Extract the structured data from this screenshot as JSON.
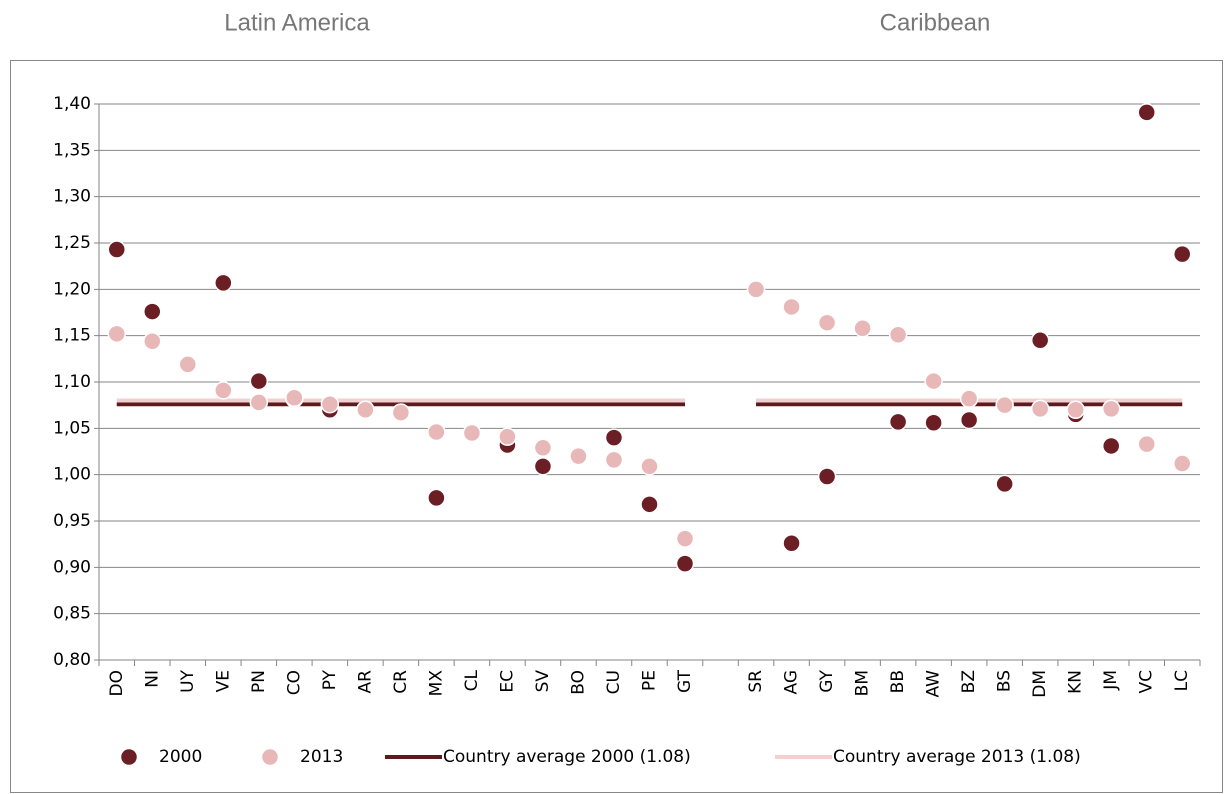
{
  "chart_data": {
    "type": "line",
    "group_titles": [
      "Latin America",
      "Caribbean"
    ],
    "categories": [
      "DO",
      "NI",
      "UY",
      "VE",
      "PN",
      "CO",
      "PY",
      "AR",
      "CR",
      "MX",
      "CL",
      "EC",
      "SV",
      "BO",
      "CU",
      "PE",
      "GT",
      null,
      "SR",
      "AG",
      "GY",
      "BM",
      "BB",
      "AW",
      "BZ",
      "BS",
      "DM",
      "KN",
      "JM",
      "VC",
      "LC"
    ],
    "series": [
      {
        "name": "2000",
        "mark": "dot",
        "color": "#6b1f24",
        "values": [
          1.243,
          1.176,
          1.119,
          1.207,
          1.101,
          1.082,
          1.07,
          1.07,
          1.067,
          0.975,
          1.045,
          1.032,
          1.009,
          1.02,
          1.04,
          0.968,
          0.904,
          null,
          1.2,
          0.926,
          0.998,
          1.158,
          1.057,
          1.056,
          1.059,
          0.99,
          1.145,
          1.065,
          1.031,
          1.391,
          1.238
        ]
      },
      {
        "name": "2013",
        "mark": "dot",
        "color": "#e8b8b8",
        "values": [
          1.152,
          1.144,
          1.119,
          1.091,
          1.078,
          1.083,
          1.076,
          1.07,
          1.067,
          1.046,
          1.045,
          1.041,
          1.029,
          1.02,
          1.016,
          1.009,
          0.931,
          null,
          1.2,
          1.181,
          1.164,
          1.158,
          1.151,
          1.101,
          1.082,
          1.075,
          1.071,
          1.07,
          1.071,
          1.033,
          1.012
        ]
      },
      {
        "name": "Country average 2000 (1.08)",
        "mark": "line",
        "color": "#5a1a1e",
        "values": [
          1.076,
          1.076,
          1.076,
          1.076,
          1.076,
          1.076,
          1.076,
          1.076,
          1.076,
          1.076,
          1.076,
          1.076,
          1.076,
          1.076,
          1.076,
          1.076,
          1.076,
          null,
          1.076,
          1.076,
          1.076,
          1.076,
          1.076,
          1.076,
          1.076,
          1.076,
          1.076,
          1.076,
          1.076,
          1.076,
          1.076
        ]
      },
      {
        "name": "Country average 2013 (1.08)",
        "mark": "line",
        "color": "#f2d0d0",
        "values": [
          1.08,
          1.08,
          1.08,
          1.08,
          1.08,
          1.08,
          1.08,
          1.08,
          1.08,
          1.08,
          1.08,
          1.08,
          1.08,
          1.08,
          1.08,
          1.08,
          1.08,
          null,
          1.08,
          1.08,
          1.08,
          1.08,
          1.08,
          1.08,
          1.08,
          1.08,
          1.08,
          1.08,
          1.08,
          1.08,
          1.08
        ]
      }
    ],
    "ylim": [
      0.8,
      1.4
    ],
    "yticks": [
      {
        "value": 0.8,
        "label": "0,80"
      },
      {
        "value": 0.85,
        "label": "0,85"
      },
      {
        "value": 0.9,
        "label": "0,90"
      },
      {
        "value": 0.95,
        "label": "0,95"
      },
      {
        "value": 1.0,
        "label": "1,00"
      },
      {
        "value": 1.05,
        "label": "1,05"
      },
      {
        "value": 1.1,
        "label": "1,10"
      },
      {
        "value": 1.15,
        "label": "1,15"
      },
      {
        "value": 1.2,
        "label": "1,20"
      },
      {
        "value": 1.25,
        "label": "1,25"
      },
      {
        "value": 1.3,
        "label": "1,30"
      },
      {
        "value": 1.35,
        "label": "1,35"
      },
      {
        "value": 1.4,
        "label": "1,40"
      }
    ],
    "grid": true,
    "legend": "bottom"
  }
}
